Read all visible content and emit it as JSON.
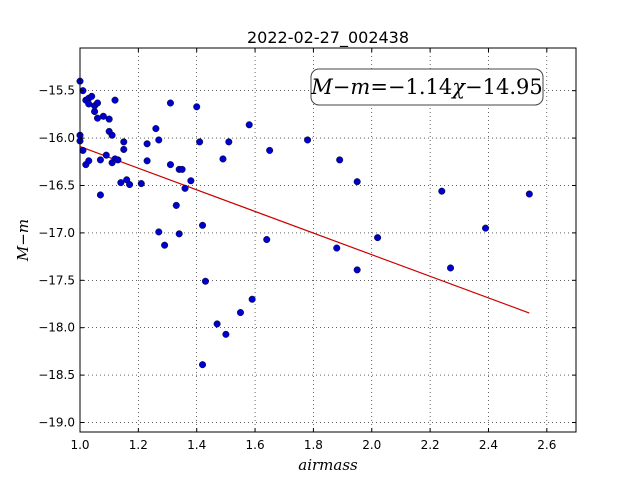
{
  "chart_data": {
    "type": "scatter",
    "title": "2022-02-27_002438",
    "xlabel": "airmass",
    "ylabel": "M−m",
    "annotation": "M−m=−1.14χ−14.95",
    "xlim": [
      1.0,
      2.7
    ],
    "ylim": [
      -19.1,
      -15.05
    ],
    "y_inverted": false,
    "grid": true,
    "xticks": [
      1.0,
      1.2,
      1.4,
      1.6,
      1.8,
      2.0,
      2.2,
      2.4,
      2.6
    ],
    "xtick_labels": [
      "1.0",
      "1.2",
      "1.4",
      "1.6",
      "1.8",
      "2.0",
      "2.2",
      "2.4",
      "2.6"
    ],
    "yticks": [
      -15.5,
      -16.0,
      -16.5,
      -17.0,
      -17.5,
      -18.0,
      -18.5,
      -19.0
    ],
    "ytick_labels": [
      "−15.5",
      "−16.0",
      "−16.5",
      "−17.0",
      "−17.5",
      "−18.0",
      "−18.5",
      "−19.0"
    ],
    "point_color": "#0000cc",
    "line_color": "#cc0000",
    "fit": {
      "slope": -1.14,
      "intercept": -14.95,
      "x_range": [
        1.0,
        2.54
      ]
    },
    "points": [
      {
        "x": 1.0,
        "y": -15.4
      },
      {
        "x": 1.0,
        "y": -15.97
      },
      {
        "x": 1.0,
        "y": -16.03
      },
      {
        "x": 1.01,
        "y": -15.5
      },
      {
        "x": 1.01,
        "y": -16.13
      },
      {
        "x": 1.02,
        "y": -16.28
      },
      {
        "x": 1.02,
        "y": -15.6
      },
      {
        "x": 1.03,
        "y": -15.58
      },
      {
        "x": 1.03,
        "y": -15.64
      },
      {
        "x": 1.03,
        "y": -16.24
      },
      {
        "x": 1.04,
        "y": -15.56
      },
      {
        "x": 1.05,
        "y": -15.72
      },
      {
        "x": 1.05,
        "y": -15.66
      },
      {
        "x": 1.06,
        "y": -15.79
      },
      {
        "x": 1.06,
        "y": -15.63
      },
      {
        "x": 1.07,
        "y": -16.23
      },
      {
        "x": 1.07,
        "y": -16.6
      },
      {
        "x": 1.08,
        "y": -15.77
      },
      {
        "x": 1.09,
        "y": -16.18
      },
      {
        "x": 1.1,
        "y": -15.93
      },
      {
        "x": 1.1,
        "y": -15.8
      },
      {
        "x": 1.11,
        "y": -15.97
      },
      {
        "x": 1.11,
        "y": -16.26
      },
      {
        "x": 1.12,
        "y": -15.6
      },
      {
        "x": 1.12,
        "y": -16.22
      },
      {
        "x": 1.13,
        "y": -16.23
      },
      {
        "x": 1.14,
        "y": -16.47
      },
      {
        "x": 1.15,
        "y": -16.12
      },
      {
        "x": 1.15,
        "y": -16.04
      },
      {
        "x": 1.16,
        "y": -16.44
      },
      {
        "x": 1.17,
        "y": -16.49
      },
      {
        "x": 1.21,
        "y": -16.48
      },
      {
        "x": 1.23,
        "y": -16.24
      },
      {
        "x": 1.23,
        "y": -16.06
      },
      {
        "x": 1.26,
        "y": -15.9
      },
      {
        "x": 1.27,
        "y": -16.99
      },
      {
        "x": 1.27,
        "y": -16.02
      },
      {
        "x": 1.29,
        "y": -17.13
      },
      {
        "x": 1.31,
        "y": -15.63
      },
      {
        "x": 1.31,
        "y": -16.28
      },
      {
        "x": 1.33,
        "y": -16.71
      },
      {
        "x": 1.34,
        "y": -17.01
      },
      {
        "x": 1.34,
        "y": -16.33
      },
      {
        "x": 1.35,
        "y": -16.33
      },
      {
        "x": 1.36,
        "y": -16.53
      },
      {
        "x": 1.38,
        "y": -16.45
      },
      {
        "x": 1.4,
        "y": -15.67
      },
      {
        "x": 1.41,
        "y": -16.04
      },
      {
        "x": 1.42,
        "y": -16.92
      },
      {
        "x": 1.42,
        "y": -18.39
      },
      {
        "x": 1.43,
        "y": -17.51
      },
      {
        "x": 1.47,
        "y": -17.96
      },
      {
        "x": 1.49,
        "y": -16.22
      },
      {
        "x": 1.5,
        "y": -18.07
      },
      {
        "x": 1.51,
        "y": -16.04
      },
      {
        "x": 1.55,
        "y": -17.84
      },
      {
        "x": 1.58,
        "y": -15.86
      },
      {
        "x": 1.59,
        "y": -17.7
      },
      {
        "x": 1.64,
        "y": -17.07
      },
      {
        "x": 1.65,
        "y": -16.13
      },
      {
        "x": 1.78,
        "y": -16.02
      },
      {
        "x": 1.88,
        "y": -17.16
      },
      {
        "x": 1.89,
        "y": -16.23
      },
      {
        "x": 1.95,
        "y": -16.46
      },
      {
        "x": 1.95,
        "y": -17.39
      },
      {
        "x": 2.02,
        "y": -17.05
      },
      {
        "x": 2.24,
        "y": -16.56
      },
      {
        "x": 2.27,
        "y": -17.37
      },
      {
        "x": 2.39,
        "y": -16.95
      },
      {
        "x": 2.54,
        "y": -16.59
      }
    ]
  }
}
